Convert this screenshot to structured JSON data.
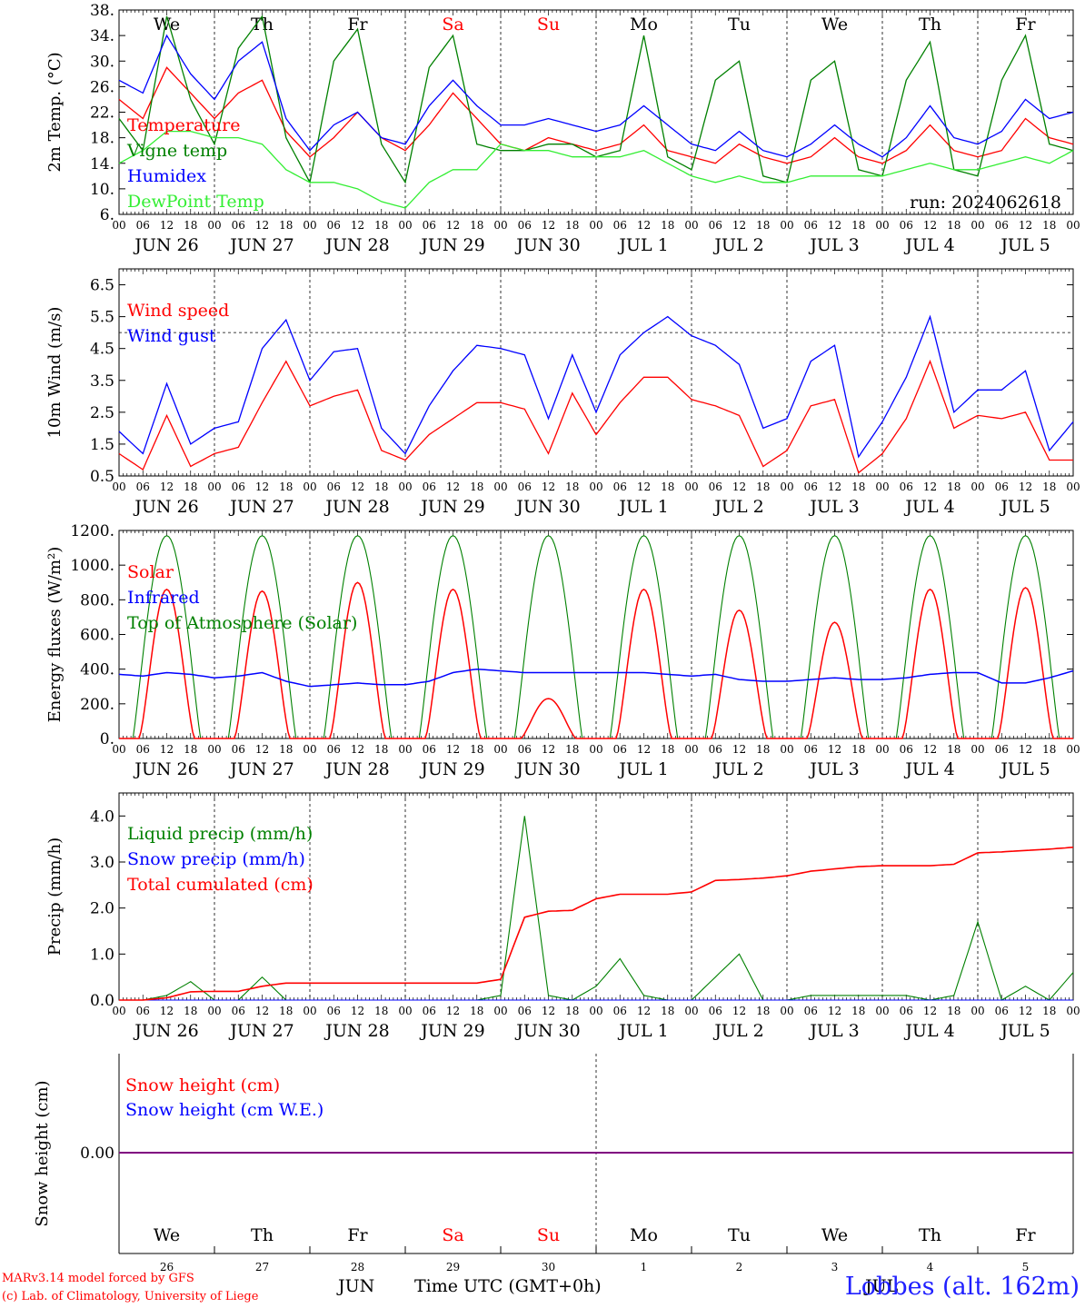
{
  "run_label": "run: 2024062618",
  "station_label": "Lobbes (alt. 162m)",
  "credit_line1": "MARv3.14 model forced by GFS",
  "credit_line2": "(c) Lab. of Climatology, University of Liege",
  "footer": {
    "month_left": "JUN",
    "month_right": "JUL",
    "axis_title": "Time UTC (GMT+0h)",
    "day_numbers": [
      "26",
      "27",
      "28",
      "29",
      "30",
      "1",
      "2",
      "3",
      "4",
      "5"
    ]
  },
  "weekdays": [
    "We",
    "Th",
    "Fr",
    "Sa",
    "Su",
    "Mo",
    "Tu",
    "We",
    "Th",
    "Fr"
  ],
  "weekend_days": [
    "Sa",
    "Su"
  ],
  "date_labels": [
    "JUN 26",
    "JUN 27",
    "JUN 28",
    "JUN 29",
    "JUN 30",
    "JUL  1",
    "JUL  2",
    "JUL  3",
    "JUL  4",
    "JUL  5"
  ],
  "hour_labels": [
    "00",
    "06",
    "12",
    "18"
  ],
  "colors": {
    "red": "#ff0000",
    "green": "#008000",
    "blue": "#0000ff",
    "lightgreen": "#33ee33",
    "purple": "#800080"
  },
  "chart_data": [
    {
      "type": "line",
      "ylabel": "2m Temp. (°C)",
      "ylim": [
        6,
        38
      ],
      "yticks": [
        "6.",
        "10.",
        "14.",
        "18.",
        "22.",
        "26.",
        "30.",
        "34.",
        "38."
      ],
      "x_hours": [
        0,
        6,
        12,
        18,
        24,
        30,
        36,
        42,
        48,
        54,
        60,
        66,
        72,
        78,
        84,
        90,
        96,
        102,
        108,
        114,
        120,
        126,
        132,
        138,
        144,
        150,
        156,
        162,
        168,
        174,
        180,
        186,
        192,
        198,
        204,
        210,
        216,
        222,
        228,
        234,
        240
      ],
      "series": [
        {
          "name": "Temperature",
          "color": "red",
          "values": [
            24,
            21,
            29,
            25,
            21,
            25,
            27,
            19,
            15,
            18,
            22,
            18,
            16,
            20,
            25,
            21,
            17,
            16,
            18,
            17,
            16,
            17,
            20,
            16,
            15,
            14,
            17,
            15,
            14,
            15,
            18,
            15,
            14,
            16,
            20,
            16,
            15,
            16,
            21,
            18,
            17
          ]
        },
        {
          "name": "Vigne temp",
          "color": "green",
          "values": [
            21,
            16,
            37,
            24,
            17,
            32,
            37,
            18,
            11,
            30,
            35,
            17,
            11,
            29,
            34,
            17,
            16,
            16,
            17,
            17,
            15,
            16,
            34,
            15,
            13,
            27,
            30,
            12,
            11,
            27,
            30,
            13,
            12,
            27,
            33,
            13,
            12,
            27,
            34,
            17,
            16
          ]
        },
        {
          "name": "Humidex",
          "color": "blue",
          "values": [
            27,
            25,
            34,
            28,
            24,
            30,
            33,
            21,
            16,
            20,
            22,
            18,
            17,
            23,
            27,
            23,
            20,
            20,
            21,
            20,
            19,
            20,
            23,
            20,
            17,
            16,
            19,
            16,
            15,
            17,
            20,
            17,
            15,
            18,
            23,
            18,
            17,
            19,
            24,
            21,
            22
          ]
        },
        {
          "name": "DewPoint Temp",
          "color": "lightgreen",
          "values": [
            14,
            16,
            19,
            19,
            18,
            18,
            17,
            13,
            11,
            11,
            10,
            8,
            7,
            11,
            13,
            13,
            17,
            16,
            16,
            15,
            15,
            15,
            16,
            14,
            12,
            11,
            12,
            11,
            11,
            12,
            12,
            12,
            12,
            13,
            14,
            13,
            13,
            14,
            15,
            14,
            16
          ]
        }
      ]
    },
    {
      "type": "line",
      "ylabel": "10m Wind (m/s)",
      "ylim": [
        0.5,
        7.0
      ],
      "yticks": [
        "0.5",
        "1.5",
        "2.5",
        "3.5",
        "4.5",
        "5.5",
        "6.5"
      ],
      "reference_line": 5.0,
      "x_hours": [
        0,
        6,
        12,
        18,
        24,
        30,
        36,
        42,
        48,
        54,
        60,
        66,
        72,
        78,
        84,
        90,
        96,
        102,
        108,
        114,
        120,
        126,
        132,
        138,
        144,
        150,
        156,
        162,
        168,
        174,
        180,
        186,
        192,
        198,
        204,
        210,
        216,
        222,
        228,
        234,
        240
      ],
      "series": [
        {
          "name": "Wind speed",
          "color": "red",
          "values": [
            1.2,
            0.7,
            2.4,
            0.8,
            1.2,
            1.4,
            2.8,
            4.1,
            2.7,
            3.0,
            3.2,
            1.3,
            1.0,
            1.8,
            2.3,
            2.8,
            2.8,
            2.6,
            1.2,
            3.1,
            1.8,
            2.8,
            3.6,
            3.6,
            2.9,
            2.7,
            2.4,
            0.8,
            1.3,
            2.7,
            2.9,
            0.6,
            1.2,
            2.3,
            4.1,
            2.0,
            2.4,
            2.3,
            2.5,
            1.0,
            1.0
          ]
        },
        {
          "name": "Wind gust",
          "color": "blue",
          "values": [
            1.9,
            1.2,
            3.4,
            1.5,
            2.0,
            2.2,
            4.5,
            5.4,
            3.5,
            4.4,
            4.5,
            2.0,
            1.2,
            2.7,
            3.8,
            4.6,
            4.5,
            4.3,
            2.3,
            4.3,
            2.5,
            4.3,
            5.0,
            5.5,
            4.9,
            4.6,
            4.0,
            2.0,
            2.3,
            4.1,
            4.6,
            1.1,
            2.2,
            3.6,
            5.5,
            2.5,
            3.2,
            3.2,
            3.8,
            1.3,
            2.2
          ]
        }
      ]
    },
    {
      "type": "line",
      "ylabel": "Energy fluxes (W/m²)",
      "ylim": [
        0,
        1200
      ],
      "yticks": [
        "0.",
        "200.",
        "400.",
        "600.",
        "800.",
        "1000.",
        "1200."
      ],
      "toa_peak": 1170,
      "solar_daily_peaks": [
        860,
        850,
        900,
        860,
        230,
        860,
        740,
        670,
        860,
        870
      ],
      "series": [
        {
          "name": "Solar",
          "color": "red"
        },
        {
          "name": "Infrared",
          "color": "blue",
          "values": [
            370,
            360,
            380,
            370,
            350,
            360,
            380,
            330,
            300,
            310,
            320,
            310,
            310,
            330,
            380,
            400,
            390,
            380,
            380,
            380,
            380,
            380,
            380,
            370,
            360,
            370,
            340,
            330,
            330,
            340,
            350,
            340,
            340,
            350,
            370,
            380,
            380,
            320,
            320,
            350,
            390
          ]
        },
        {
          "name": "Top of Atmosphere (Solar)",
          "color": "green"
        }
      ]
    },
    {
      "type": "line",
      "ylabel": "Precip (mm/h)",
      "ylim": [
        0,
        4.5
      ],
      "yticks": [
        "0.0",
        "1.0",
        "2.0",
        "3.0",
        "4.0"
      ],
      "x_hours": [
        0,
        6,
        12,
        18,
        24,
        30,
        36,
        42,
        48,
        54,
        60,
        66,
        72,
        78,
        84,
        90,
        96,
        102,
        108,
        114,
        120,
        126,
        132,
        138,
        144,
        150,
        156,
        162,
        168,
        174,
        180,
        186,
        192,
        198,
        204,
        210,
        216,
        222,
        228,
        234,
        240
      ],
      "series": [
        {
          "name": "Liquid precip (mm/h)",
          "color": "green",
          "values": [
            0,
            0,
            0.1,
            0.4,
            0,
            0,
            0.5,
            0,
            0,
            0,
            0,
            0,
            0,
            0,
            0,
            0,
            0.1,
            4.0,
            0.1,
            0,
            0.3,
            0.9,
            0.1,
            0,
            0,
            0.5,
            1.0,
            0,
            0,
            0.1,
            0.1,
            0.1,
            0.1,
            0.1,
            0,
            0.1,
            1.7,
            0,
            0.3,
            0,
            0.6
          ]
        },
        {
          "name": "Snow precip (mm/h)",
          "color": "blue",
          "values": [
            0,
            0,
            0,
            0,
            0,
            0,
            0,
            0,
            0,
            0,
            0,
            0,
            0,
            0,
            0,
            0,
            0,
            0,
            0,
            0,
            0,
            0,
            0,
            0,
            0,
            0,
            0,
            0,
            0,
            0,
            0,
            0,
            0,
            0,
            0,
            0,
            0,
            0,
            0,
            0,
            0
          ]
        },
        {
          "name": "Total cumulated (cm)",
          "color": "red",
          "values": [
            0,
            0,
            0.05,
            0.18,
            0.19,
            0.19,
            0.3,
            0.37,
            0.37,
            0.37,
            0.37,
            0.37,
            0.37,
            0.37,
            0.37,
            0.37,
            0.45,
            1.8,
            1.93,
            1.95,
            2.2,
            2.3,
            2.3,
            2.3,
            2.35,
            2.6,
            2.62,
            2.65,
            2.7,
            2.8,
            2.85,
            2.9,
            2.92,
            2.92,
            2.92,
            2.95,
            3.2,
            3.22,
            3.25,
            3.28,
            3.32
          ]
        }
      ]
    },
    {
      "type": "line",
      "ylabel": "Snow height (cm)",
      "yticks": [
        "0.00"
      ],
      "series": [
        {
          "name": "Snow height (cm)",
          "color": "red",
          "values": [
            0,
            0
          ]
        },
        {
          "name": "Snow height (cm W.E.)",
          "color": "blue",
          "values": [
            0,
            0
          ]
        }
      ]
    }
  ]
}
